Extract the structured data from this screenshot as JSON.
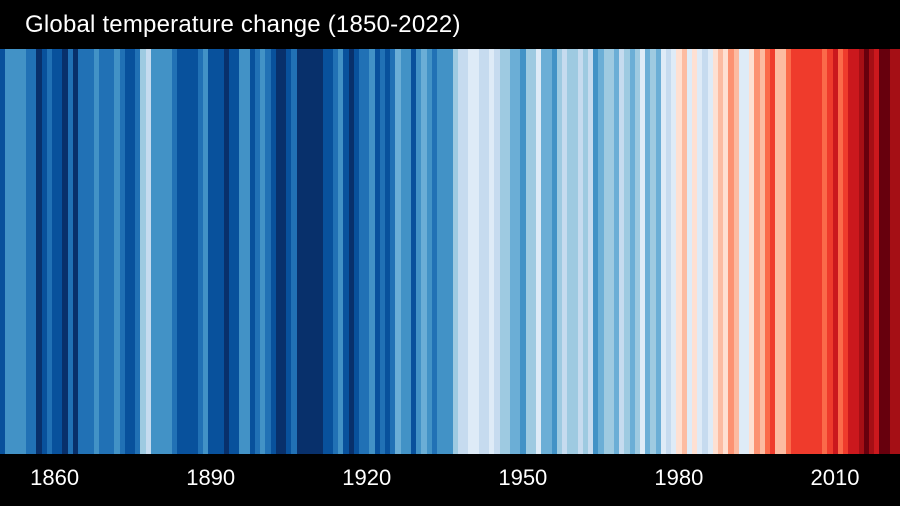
{
  "header": {
    "title": "Global temperature change (1850-2022)"
  },
  "axis": {
    "tick_labels": [
      "1860",
      "1890",
      "1920",
      "1950",
      "1980",
      "2010"
    ]
  },
  "chart_data": {
    "type": "heatmap",
    "title": "Global temperature change (1850-2022)",
    "year_start": 1850,
    "year_end": 2022,
    "x_tick_labels": [
      "1860",
      "1890",
      "1920",
      "1950",
      "1980",
      "2010"
    ],
    "legend_position": "none",
    "grid": false,
    "palette_cold_to_warm": [
      "#08306b",
      "#08519c",
      "#2171b5",
      "#4292c6",
      "#6baed6",
      "#9ecae1",
      "#c6dbef",
      "#deebf7",
      "#fee0d2",
      "#fcbba1",
      "#fc9272",
      "#fb6a4a",
      "#ef3b2c",
      "#cb181d",
      "#a50f15",
      "#67000d"
    ],
    "stripe_colors": [
      "#08519c",
      "#4292c6",
      "#4292c6",
      "#4292c6",
      "#4292c6",
      "#2171b5",
      "#2171b5",
      "#08306b",
      "#08519c",
      "#2171b5",
      "#08519c",
      "#08519c",
      "#08306b",
      "#2171b5",
      "#08306b",
      "#2171b5",
      "#2171b5",
      "#2171b5",
      "#4292c6",
      "#2171b5",
      "#2171b5",
      "#2171b5",
      "#4292c6",
      "#2171b5",
      "#08519c",
      "#08519c",
      "#2171b5",
      "#9ecae1",
      "#c6dbef",
      "#4292c6",
      "#4292c6",
      "#4292c6",
      "#4292c6",
      "#2171b5",
      "#08519c",
      "#08519c",
      "#08519c",
      "#08519c",
      "#2171b5",
      "#4292c6",
      "#08519c",
      "#08519c",
      "#08519c",
      "#08306b",
      "#08519c",
      "#08519c",
      "#4292c6",
      "#4292c6",
      "#08519c",
      "#2171b5",
      "#4292c6",
      "#2171b5",
      "#08519c",
      "#08306b",
      "#08306b",
      "#08519c",
      "#2171b5",
      "#08306b",
      "#08306b",
      "#08306b",
      "#08306b",
      "#08306b",
      "#08519c",
      "#08519c",
      "#2171b5",
      "#4292c6",
      "#08519c",
      "#08306b",
      "#08519c",
      "#2171b5",
      "#2171b5",
      "#4292c6",
      "#08519c",
      "#2171b5",
      "#08519c",
      "#2171b5",
      "#6baed6",
      "#4292c6",
      "#4292c6",
      "#08519c",
      "#4292c6",
      "#6baed6",
      "#4292c6",
      "#2171b5",
      "#4292c6",
      "#4292c6",
      "#4292c6",
      "#9ecae1",
      "#c6dbef",
      "#c6dbef",
      "#deebf7",
      "#deebf7",
      "#c6dbef",
      "#c6dbef",
      "#deebf7",
      "#c6dbef",
      "#9ecae1",
      "#9ecae1",
      "#6baed6",
      "#6baed6",
      "#4292c6",
      "#9ecae1",
      "#9ecae1",
      "#deebf7",
      "#6baed6",
      "#6baed6",
      "#4292c6",
      "#9ecae1",
      "#c6dbef",
      "#9ecae1",
      "#9ecae1",
      "#c6dbef",
      "#9ecae1",
      "#c6dbef",
      "#4292c6",
      "#6baed6",
      "#9ecae1",
      "#9ecae1",
      "#6baed6",
      "#c6dbef",
      "#9ecae1",
      "#6baed6",
      "#9ecae1",
      "#deebf7",
      "#6baed6",
      "#9ecae1",
      "#6baed6",
      "#deebf7",
      "#c6dbef",
      "#deebf7",
      "#fee0d2",
      "#fcbba1",
      "#deebf7",
      "#fee0d2",
      "#deebf7",
      "#c6dbef",
      "#deebf7",
      "#fee0d2",
      "#fcbba1",
      "#fee0d2",
      "#fc9272",
      "#fcbba1",
      "#deebf7",
      "#deebf7",
      "#fee0d2",
      "#fc9272",
      "#fcbba1",
      "#fb6a4a",
      "#ef3b2c",
      "#fcbba1",
      "#fcbba1",
      "#fb6a4a",
      "#ef3b2c",
      "#ef3b2c",
      "#ef3b2c",
      "#ef3b2c",
      "#ef3b2c",
      "#ef3b2c",
      "#fb6a4a",
      "#ef3b2c",
      "#cb181d",
      "#fb6a4a",
      "#ef3b2c",
      "#cb181d",
      "#cb181d",
      "#a50f15",
      "#67000d",
      "#a50f15",
      "#cb181d",
      "#67000d",
      "#67000d",
      "#a50f15",
      "#a50f15"
    ],
    "colors": {
      "background": "#000000",
      "text": "#ffffff"
    }
  }
}
